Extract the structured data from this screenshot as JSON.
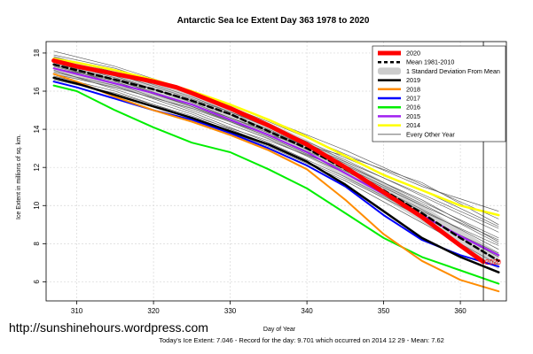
{
  "chart_data": {
    "type": "line",
    "title": "Antarctic Sea Ice Extent Day 363 1978 to 2020",
    "xlabel": "Day of Year",
    "ylabel": "Ice Extent in millions of sq. km.",
    "xlim": [
      306,
      366
    ],
    "ylim": [
      5,
      18.6
    ],
    "x_ticks": [
      310,
      320,
      330,
      340,
      350,
      360
    ],
    "y_ticks": [
      6,
      8,
      10,
      12,
      14,
      16,
      18
    ],
    "grid": true,
    "legend_position": "top-right",
    "marker_day": 363,
    "marker_label": "2020",
    "series": [
      {
        "name": "2020",
        "color": "#ff0000",
        "width": 5,
        "x": [
          307,
          310,
          315,
          320,
          323,
          325,
          330,
          335,
          340,
          345,
          350,
          355,
          360,
          363
        ],
        "y": [
          17.6,
          17.3,
          16.9,
          16.5,
          16.2,
          15.9,
          15.1,
          14.2,
          13.2,
          12.0,
          10.7,
          9.4,
          7.9,
          7.05
        ]
      },
      {
        "name": "Mean 1981-2010",
        "color": "#000000",
        "width": 2.5,
        "dash": "6,4",
        "x": [
          307,
          310,
          315,
          320,
          325,
          330,
          335,
          340,
          345,
          350,
          355,
          360,
          365
        ],
        "y": [
          17.4,
          17.1,
          16.6,
          16.1,
          15.5,
          14.8,
          13.9,
          13.0,
          11.9,
          10.8,
          9.6,
          8.3,
          7.1
        ]
      },
      {
        "name": "2019",
        "color": "#000000",
        "width": 2.5,
        "x": [
          307,
          310,
          315,
          320,
          325,
          330,
          335,
          340,
          345,
          350,
          355,
          360,
          365
        ],
        "y": [
          16.7,
          16.4,
          15.8,
          15.2,
          14.6,
          13.9,
          13.2,
          12.3,
          11.1,
          9.7,
          8.3,
          7.3,
          6.5
        ]
      },
      {
        "name": "2018",
        "color": "#ff8c00",
        "width": 2,
        "x": [
          307,
          310,
          315,
          320,
          325,
          330,
          335,
          340,
          345,
          350,
          355,
          360,
          365
        ],
        "y": [
          16.9,
          16.5,
          15.7,
          15.0,
          14.4,
          13.7,
          12.9,
          11.9,
          10.3,
          8.5,
          7.1,
          6.1,
          5.5
        ]
      },
      {
        "name": "2017",
        "color": "#0000ff",
        "width": 2,
        "x": [
          307,
          310,
          315,
          320,
          325,
          330,
          335,
          340,
          345,
          350,
          355,
          360,
          365
        ],
        "y": [
          16.5,
          16.2,
          15.6,
          15.0,
          14.5,
          13.8,
          13.0,
          12.1,
          11.0,
          9.5,
          8.2,
          7.4,
          6.8
        ]
      },
      {
        "name": "2016",
        "color": "#00ee00",
        "width": 2,
        "x": [
          307,
          310,
          315,
          320,
          325,
          330,
          335,
          340,
          345,
          350,
          355,
          360,
          365
        ],
        "y": [
          16.3,
          16.0,
          15.0,
          14.1,
          13.3,
          12.8,
          11.9,
          10.9,
          9.6,
          8.3,
          7.3,
          6.6,
          5.9
        ]
      },
      {
        "name": "2015",
        "color": "#a020f0",
        "width": 2,
        "x": [
          307,
          310,
          315,
          320,
          325,
          330,
          335,
          340,
          345,
          350,
          355,
          360,
          365
        ],
        "y": [
          17.2,
          16.9,
          16.4,
          15.9,
          15.3,
          14.5,
          13.7,
          12.8,
          11.7,
          10.6,
          9.5,
          8.4,
          7.4
        ]
      },
      {
        "name": "2014",
        "color": "#ffff00",
        "width": 2.5,
        "x": [
          307,
          310,
          315,
          320,
          325,
          330,
          335,
          340,
          345,
          350,
          355,
          360,
          365
        ],
        "y": [
          17.7,
          17.5,
          17.1,
          16.6,
          16.0,
          15.3,
          14.5,
          13.6,
          12.6,
          11.6,
          10.8,
          10.0,
          9.5
        ]
      }
    ],
    "other_years": {
      "name": "Every Other Year",
      "color": "#555555",
      "x": [
        307,
        315,
        325,
        335,
        345,
        355,
        365
      ],
      "series": [
        [
          18.1,
          17.3,
          16.0,
          14.5,
          12.9,
          11.1,
          9.3
        ],
        [
          17.8,
          17.0,
          15.7,
          14.1,
          12.4,
          10.5,
          8.6
        ],
        [
          17.5,
          16.8,
          15.4,
          13.8,
          12.1,
          10.3,
          8.1
        ],
        [
          17.3,
          16.5,
          15.2,
          13.6,
          11.8,
          9.8,
          7.7
        ],
        [
          17.0,
          16.3,
          14.9,
          13.3,
          11.5,
          9.5,
          7.3
        ],
        [
          16.8,
          16.0,
          14.6,
          13.1,
          11.3,
          9.1,
          6.9
        ],
        [
          17.9,
          17.2,
          15.9,
          14.4,
          12.7,
          11.0,
          9.7
        ],
        [
          17.6,
          16.7,
          15.5,
          14.0,
          12.2,
          10.2,
          8.3
        ],
        [
          17.2,
          16.6,
          15.3,
          13.9,
          12.3,
          10.6,
          8.8
        ],
        [
          17.4,
          16.4,
          15.0,
          13.5,
          11.7,
          9.7,
          7.9
        ],
        [
          16.9,
          16.2,
          15.1,
          13.7,
          12.0,
          10.1,
          8.0
        ],
        [
          17.7,
          16.9,
          15.6,
          14.2,
          12.5,
          10.8,
          8.9
        ],
        [
          17.1,
          16.1,
          14.8,
          13.2,
          11.4,
          9.4,
          7.5
        ],
        [
          17.5,
          16.6,
          15.2,
          13.7,
          12.6,
          11.2,
          9.0
        ],
        [
          16.6,
          15.9,
          14.7,
          13.4,
          11.9,
          10.0,
          8.2
        ]
      ]
    }
  },
  "legend": {
    "items": [
      {
        "label": "2020",
        "color": "#ff0000",
        "kind": "line-thick"
      },
      {
        "label": "Mean 1981-2010",
        "color": "#000000",
        "kind": "dash"
      },
      {
        "label": "1 Standard Deviation From Mean",
        "color": "#cccccc",
        "kind": "band"
      },
      {
        "label": "2019",
        "color": "#000000",
        "kind": "line"
      },
      {
        "label": "2018",
        "color": "#ff8c00",
        "kind": "line"
      },
      {
        "label": "2017",
        "color": "#0000ff",
        "kind": "line"
      },
      {
        "label": "2016",
        "color": "#00ee00",
        "kind": "line"
      },
      {
        "label": "2015",
        "color": "#a020f0",
        "kind": "line"
      },
      {
        "label": "2014",
        "color": "#ffff00",
        "kind": "line"
      },
      {
        "label": "Every Other Year",
        "color": "#555555",
        "kind": "thin"
      }
    ]
  },
  "footer": {
    "watermark": "http://sunshinehours.wordpress.com",
    "summary": "Today's Ice Extent: 7.046  - Record for the day: 9.701 which occurred on 2014 12 29  - Mean: 7.62"
  }
}
